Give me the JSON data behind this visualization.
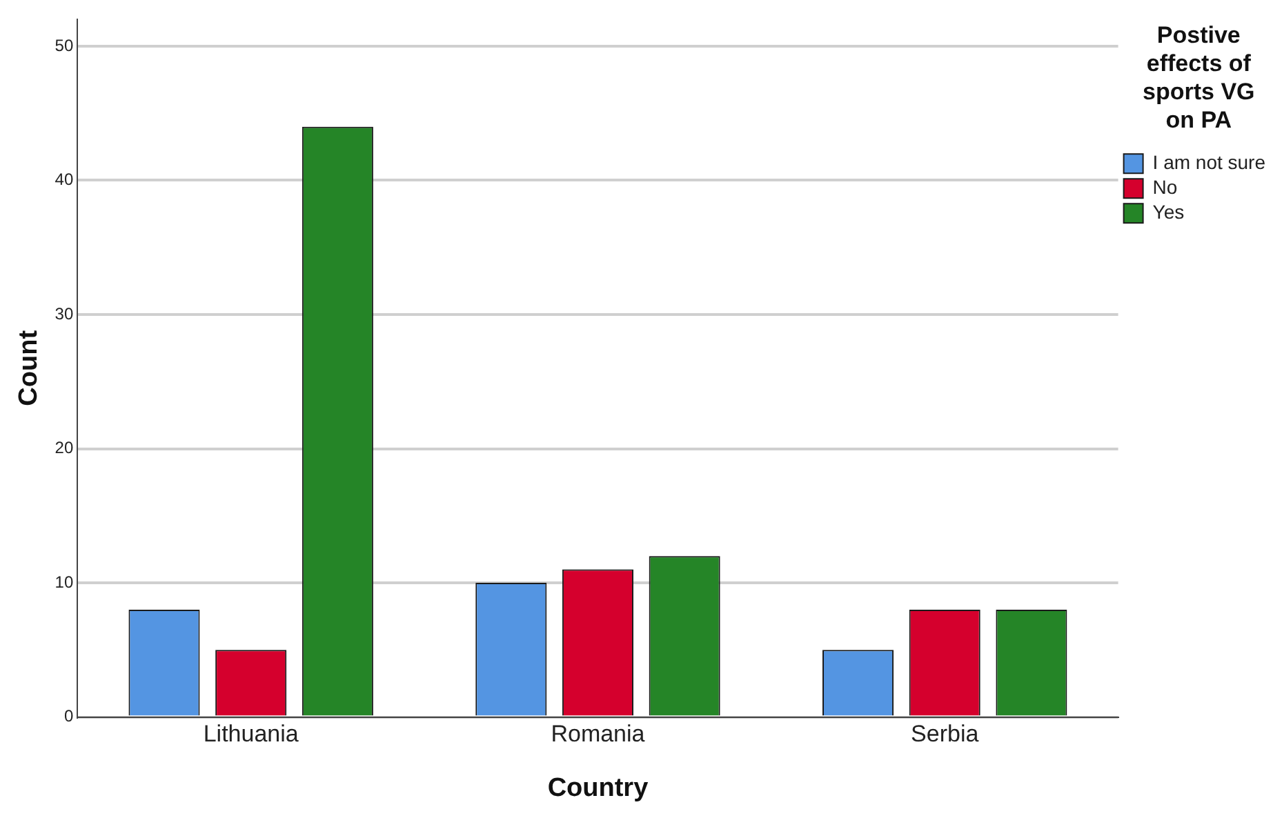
{
  "chart_data": {
    "type": "bar",
    "xlabel": "Country",
    "ylabel": "Count",
    "legend_title": "Postive effects of sports VG on PA",
    "categories": [
      "Lithuania",
      "Romania",
      "Serbia"
    ],
    "series": [
      {
        "name": "I am not sure",
        "color": "#5495e2",
        "values": [
          8,
          10,
          5
        ]
      },
      {
        "name": "No",
        "color": "#d5002d",
        "values": [
          5,
          11,
          8
        ]
      },
      {
        "name": "Yes",
        "color": "#258527",
        "values": [
          44,
          12,
          8
        ]
      }
    ],
    "ylim": [
      0,
      52
    ],
    "yticks": [
      0,
      10,
      20,
      30,
      40,
      50
    ],
    "grid": "y",
    "legend": "top right"
  }
}
